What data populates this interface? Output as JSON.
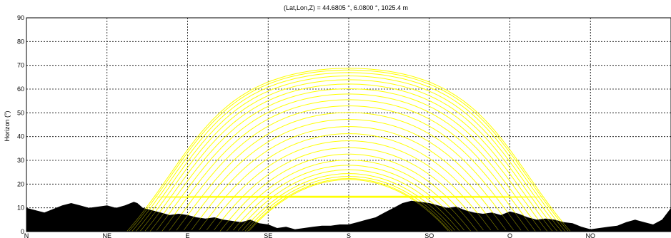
{
  "chart_data": {
    "type": "line",
    "title": "(Lat,Lon,Z) = 44.6805 °, 6.0800 °, 1025.4 m",
    "ylabel": "Horizon (°)",
    "xlabel": "",
    "x_categories": [
      "N",
      "NE",
      "E",
      "SE",
      "S",
      "SO",
      "O",
      "NO"
    ],
    "xlim": [
      0,
      360
    ],
    "ylim": [
      0,
      90
    ],
    "y_ticks": [
      0,
      10,
      20,
      30,
      40,
      50,
      60,
      70,
      80,
      90
    ],
    "grid": true,
    "horizon_profile": {
      "azimuth": [
        0,
        5,
        10,
        15,
        20,
        25,
        30,
        35,
        40,
        45,
        50,
        55,
        60,
        62,
        65,
        70,
        75,
        80,
        85,
        90,
        95,
        100,
        105,
        110,
        115,
        120,
        125,
        130,
        135,
        140,
        145,
        150,
        155,
        160,
        165,
        170,
        175,
        180,
        185,
        190,
        195,
        200,
        205,
        210,
        215,
        220,
        225,
        230,
        235,
        240,
        245,
        250,
        255,
        260,
        265,
        270,
        275,
        280,
        285,
        290,
        295,
        300,
        305,
        310,
        315,
        320,
        325,
        330,
        335,
        340,
        345,
        350,
        355,
        360
      ],
      "elevation": [
        10,
        9,
        8,
        9.5,
        11,
        12,
        11,
        10,
        10.5,
        11,
        10,
        11,
        12.5,
        12,
        10,
        9,
        8,
        7,
        7.5,
        7,
        6,
        5.5,
        6,
        5,
        4.5,
        4,
        5,
        3.5,
        3,
        1.5,
        2,
        1,
        1.5,
        2,
        2.5,
        2.5,
        3,
        3,
        4,
        5,
        6,
        8,
        10,
        12,
        13,
        12.5,
        12,
        11,
        10,
        10.5,
        9,
        8,
        7.5,
        8,
        7,
        8.5,
        7.5,
        6,
        5,
        5.5,
        5,
        4,
        3.5,
        2,
        1,
        1.5,
        2,
        2.5,
        4,
        5,
        4,
        3,
        5,
        10
      ]
    },
    "series": [
      {
        "values": [
          {
            "dec": 23.44
          }
        ]
      },
      {
        "values": [
          {
            "dec": 22.7
          }
        ]
      },
      {
        "values": [
          {
            "dec": 21.6
          }
        ]
      },
      {
        "values": [
          {
            "dec": 20.2
          }
        ]
      },
      {
        "values": [
          {
            "dec": 18.6
          }
        ]
      },
      {
        "values": [
          {
            "dec": 16.8
          }
        ]
      },
      {
        "values": [
          {
            "dec": 14.8
          }
        ]
      },
      {
        "values": [
          {
            "dec": 12.6
          }
        ]
      },
      {
        "values": [
          {
            "dec": 10.2
          }
        ]
      },
      {
        "values": [
          {
            "dec": 7.6
          }
        ]
      },
      {
        "values": [
          {
            "dec": 4.8
          }
        ]
      },
      {
        "values": [
          {
            "dec": 1.9
          }
        ]
      },
      {
        "values": [
          {
            "dec": -1.1
          }
        ]
      },
      {
        "values": [
          {
            "dec": -4.1
          }
        ]
      },
      {
        "values": [
          {
            "dec": -7.1
          }
        ]
      },
      {
        "values": [
          {
            "dec": -10.0
          }
        ]
      },
      {
        "values": [
          {
            "dec": -12.7
          }
        ]
      },
      {
        "values": [
          {
            "dec": -15.2
          }
        ]
      },
      {
        "values": [
          {
            "dec": -17.4
          }
        ]
      },
      {
        "values": [
          {
            "dec": -19.3
          }
        ]
      },
      {
        "values": [
          {
            "dec": -20.9
          }
        ]
      },
      {
        "values": [
          {
            "dec": -22.1
          }
        ]
      },
      {
        "values": [
          {
            "dec": -23.0
          }
        ]
      },
      {
        "values": [
          {
            "dec": -23.44
          }
        ]
      }
    ],
    "site_latitude": 44.6805,
    "sun_path_color": "#ffff00",
    "terrain_color": "#000000",
    "grid_color": "#000000"
  }
}
